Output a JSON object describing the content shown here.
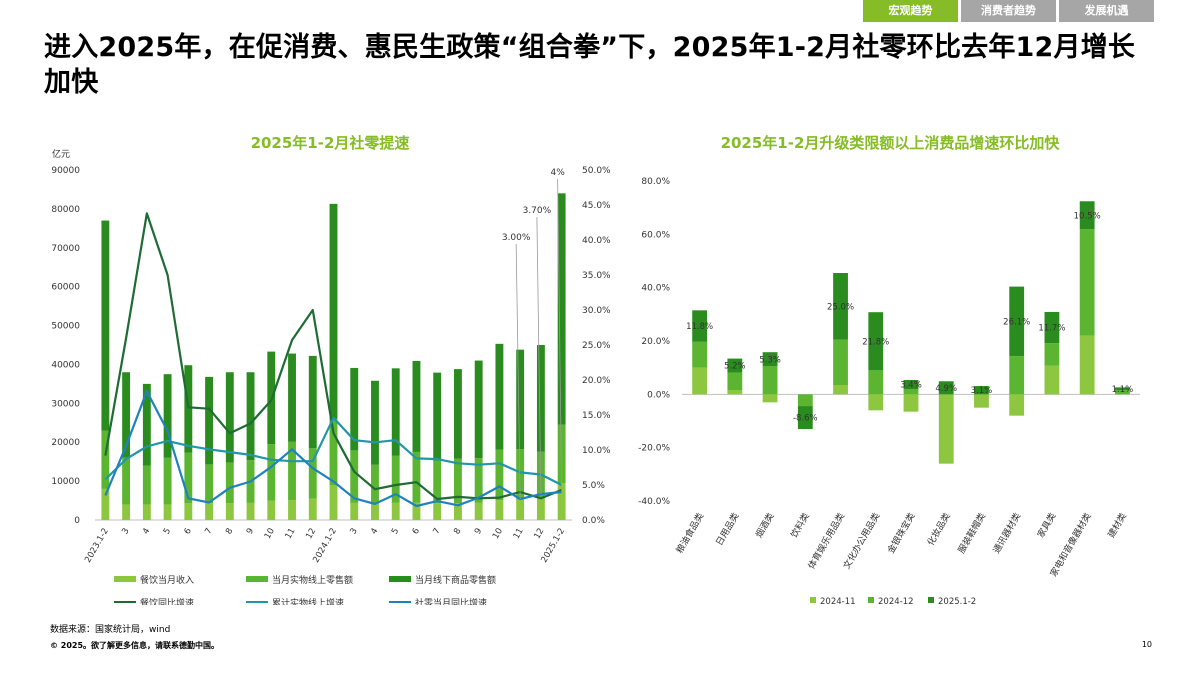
{
  "header_tabs": [
    {
      "label": "宏观趋势",
      "active": true
    },
    {
      "label": "消费者趋势",
      "active": false
    },
    {
      "label": "发展机遇",
      "active": false
    }
  ],
  "headline": "进入2025年，在促消费、惠民生政策“组合拳”下，2025年1-2月社零环比去年12月增长加快",
  "colors": {
    "accent": "#86bc25",
    "bar_catering": "#8dc63f",
    "bar_online": "#5cb531",
    "bar_offline": "#2a8c1e",
    "line_catering_yoy": "#1e6b34",
    "line_online_cum": "#2196a8",
    "line_retail_yoy": "#1f82c0"
  },
  "chart_data": [
    {
      "type": "bar",
      "title": "2025年1-2月社零提速",
      "ylabel": "亿元",
      "ylim": [
        0,
        90000
      ],
      "yticks": [
        "0",
        "10000",
        "20000",
        "30000",
        "40000",
        "50000",
        "60000",
        "70000",
        "80000",
        "90000"
      ],
      "y2lim": [
        0,
        0.5
      ],
      "y2ticks": [
        "0.0%",
        "5.0%",
        "10.0%",
        "15.0%",
        "20.0%",
        "25.0%",
        "30.0%",
        "35.0%",
        "40.0%",
        "45.0%",
        "50.0%"
      ],
      "categories": [
        "2023.1-2",
        "3",
        "4",
        "5",
        "6",
        "7",
        "8",
        "9",
        "10",
        "11",
        "12",
        "2024.1-2",
        "3",
        "4",
        "5",
        "6",
        "7",
        "8",
        "9",
        "10",
        "11",
        "12",
        "2025.1-2"
      ],
      "stacked_series": [
        {
          "name": "餐饮当月收入",
          "values": [
            8000,
            4000,
            4000,
            4000,
            4300,
            4300,
            4300,
            4400,
            5000,
            5100,
            5500,
            9000,
            4400,
            4200,
            4500,
            4500,
            4300,
            4300,
            4400,
            5100,
            5200,
            5600,
            9500
          ]
        },
        {
          "name": "当月实物线上零售额",
          "values": [
            15000,
            12000,
            10000,
            12000,
            13000,
            10000,
            10500,
            11000,
            14500,
            15000,
            13000,
            17000,
            13500,
            10000,
            12000,
            13000,
            11000,
            11500,
            11500,
            13000,
            13000,
            12000,
            15000
          ]
        },
        {
          "name": "当月线下商品零售额",
          "values": [
            54000,
            22000,
            21000,
            21500,
            22500,
            22500,
            23200,
            22600,
            23800,
            22700,
            23700,
            55300,
            21200,
            21600,
            22500,
            23400,
            22600,
            23000,
            25100,
            27200,
            25600,
            27400,
            59500
          ]
        }
      ],
      "line_series": [
        {
          "name": "餐饮同比增速",
          "values": [
            0.092,
            0.26,
            0.438,
            0.35,
            0.161,
            0.159,
            0.124,
            0.138,
            0.171,
            0.257,
            0.3,
            0.124,
            0.069,
            0.044,
            0.05,
            0.054,
            0.03,
            0.033,
            0.031,
            0.032,
            0.04,
            0.031,
            0.043
          ]
        },
        {
          "name": "累计实物线上增速",
          "values": [
            0.058,
            0.087,
            0.105,
            0.113,
            0.106,
            0.101,
            0.097,
            0.093,
            0.086,
            0.084,
            0.084,
            0.146,
            0.114,
            0.111,
            0.114,
            0.088,
            0.087,
            0.081,
            0.079,
            0.081,
            0.068,
            0.065,
            0.05
          ]
        },
        {
          "name": "社零当月同比增速",
          "values": [
            0.035,
            0.106,
            0.184,
            0.127,
            0.031,
            0.025,
            0.046,
            0.055,
            0.076,
            0.101,
            0.074,
            0.055,
            0.031,
            0.023,
            0.037,
            0.02,
            0.027,
            0.021,
            0.032,
            0.048,
            0.03,
            0.037,
            0.04
          ]
        }
      ],
      "annotations": [
        {
          "text": "3.00%",
          "index": 20,
          "value": 0.03
        },
        {
          "text": "3.70%",
          "index": 21,
          "value": 0.037
        },
        {
          "text": "4%",
          "index": 22,
          "value": 0.04
        }
      ]
    },
    {
      "type": "bar",
      "title": "2025年1-2月升级类限额以上消费品增速环比加快",
      "ylim": [
        -0.4,
        0.8
      ],
      "yticks": [
        "-40.0%",
        "-20.0%",
        "0.0%",
        "20.0%",
        "40.0%",
        "60.0%",
        "80.0%"
      ],
      "categories": [
        "粮油食品类",
        "日用品类",
        "烟酒类",
        "饮料类",
        "体育娱乐用品类",
        "文化办公用品类",
        "金银珠宝类",
        "化妆品类",
        "服装鞋帽类",
        "通讯器材类",
        "家具类",
        "家电和音像器材类",
        "建材类"
      ],
      "series": [
        {
          "name": "2024-11",
          "values": [
            0.1,
            0.015,
            -0.03,
            0.0,
            0.035,
            -0.06,
            -0.065,
            -0.26,
            -0.05,
            -0.08,
            0.107,
            0.22,
            0.0
          ]
        },
        {
          "name": "2024-12",
          "values": [
            0.097,
            0.067,
            0.105,
            -0.044,
            0.17,
            0.09,
            0.02,
            0.0,
            0.0,
            0.143,
            0.085,
            0.399,
            0.015
          ]
        },
        {
          "name": "2025.1-2",
          "values": [
            0.118,
            0.052,
            0.053,
            -0.086,
            0.25,
            0.218,
            0.034,
            0.049,
            0.031,
            0.261,
            0.117,
            0.105,
            0.011
          ]
        }
      ],
      "data_labels": [
        "11.8%",
        "5.2%",
        "5.3%",
        "-8.6%",
        "25.0%",
        "21.8%",
        "3.4%",
        "4.9%",
        "3.1%",
        "26.1%",
        "11.7%",
        "10.5%",
        "1.1%"
      ]
    }
  ],
  "footer": {
    "source": "数据来源：国家统计局，wind",
    "copyright": "© 2025。欲了解更多信息，请联系德勤中国。",
    "page_number": "10"
  }
}
